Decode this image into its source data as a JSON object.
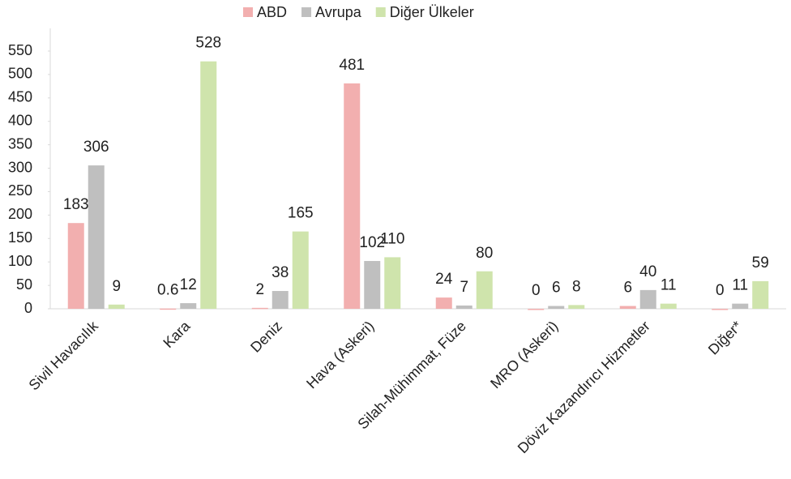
{
  "chart_data": {
    "type": "bar",
    "categories": [
      "Sivil Havacılık",
      "Kara",
      "Deniz",
      "Hava (Askeri)",
      "Silah-Mühimmat, Füze",
      "MRO (Askeri)",
      "Döviz Kazandırıcı Hizmetler",
      "Diğer*"
    ],
    "series": [
      {
        "name": "ABD",
        "color": "#f2afaf",
        "values": [
          183,
          0.6,
          2,
          481,
          24,
          0,
          6,
          0
        ]
      },
      {
        "name": "Avrupa",
        "color": "#bfbfbf",
        "values": [
          306,
          12,
          38,
          102,
          7,
          6,
          40,
          11
        ]
      },
      {
        "name": "Diğer Ülkeler",
        "color": "#cfe4ac",
        "values": [
          9,
          528,
          165,
          110,
          80,
          8,
          11,
          59
        ]
      }
    ],
    "ylim": [
      0,
      550
    ],
    "yticks": [
      0,
      50,
      100,
      150,
      200,
      250,
      300,
      350,
      400,
      450,
      500,
      550
    ],
    "legend": "top"
  }
}
